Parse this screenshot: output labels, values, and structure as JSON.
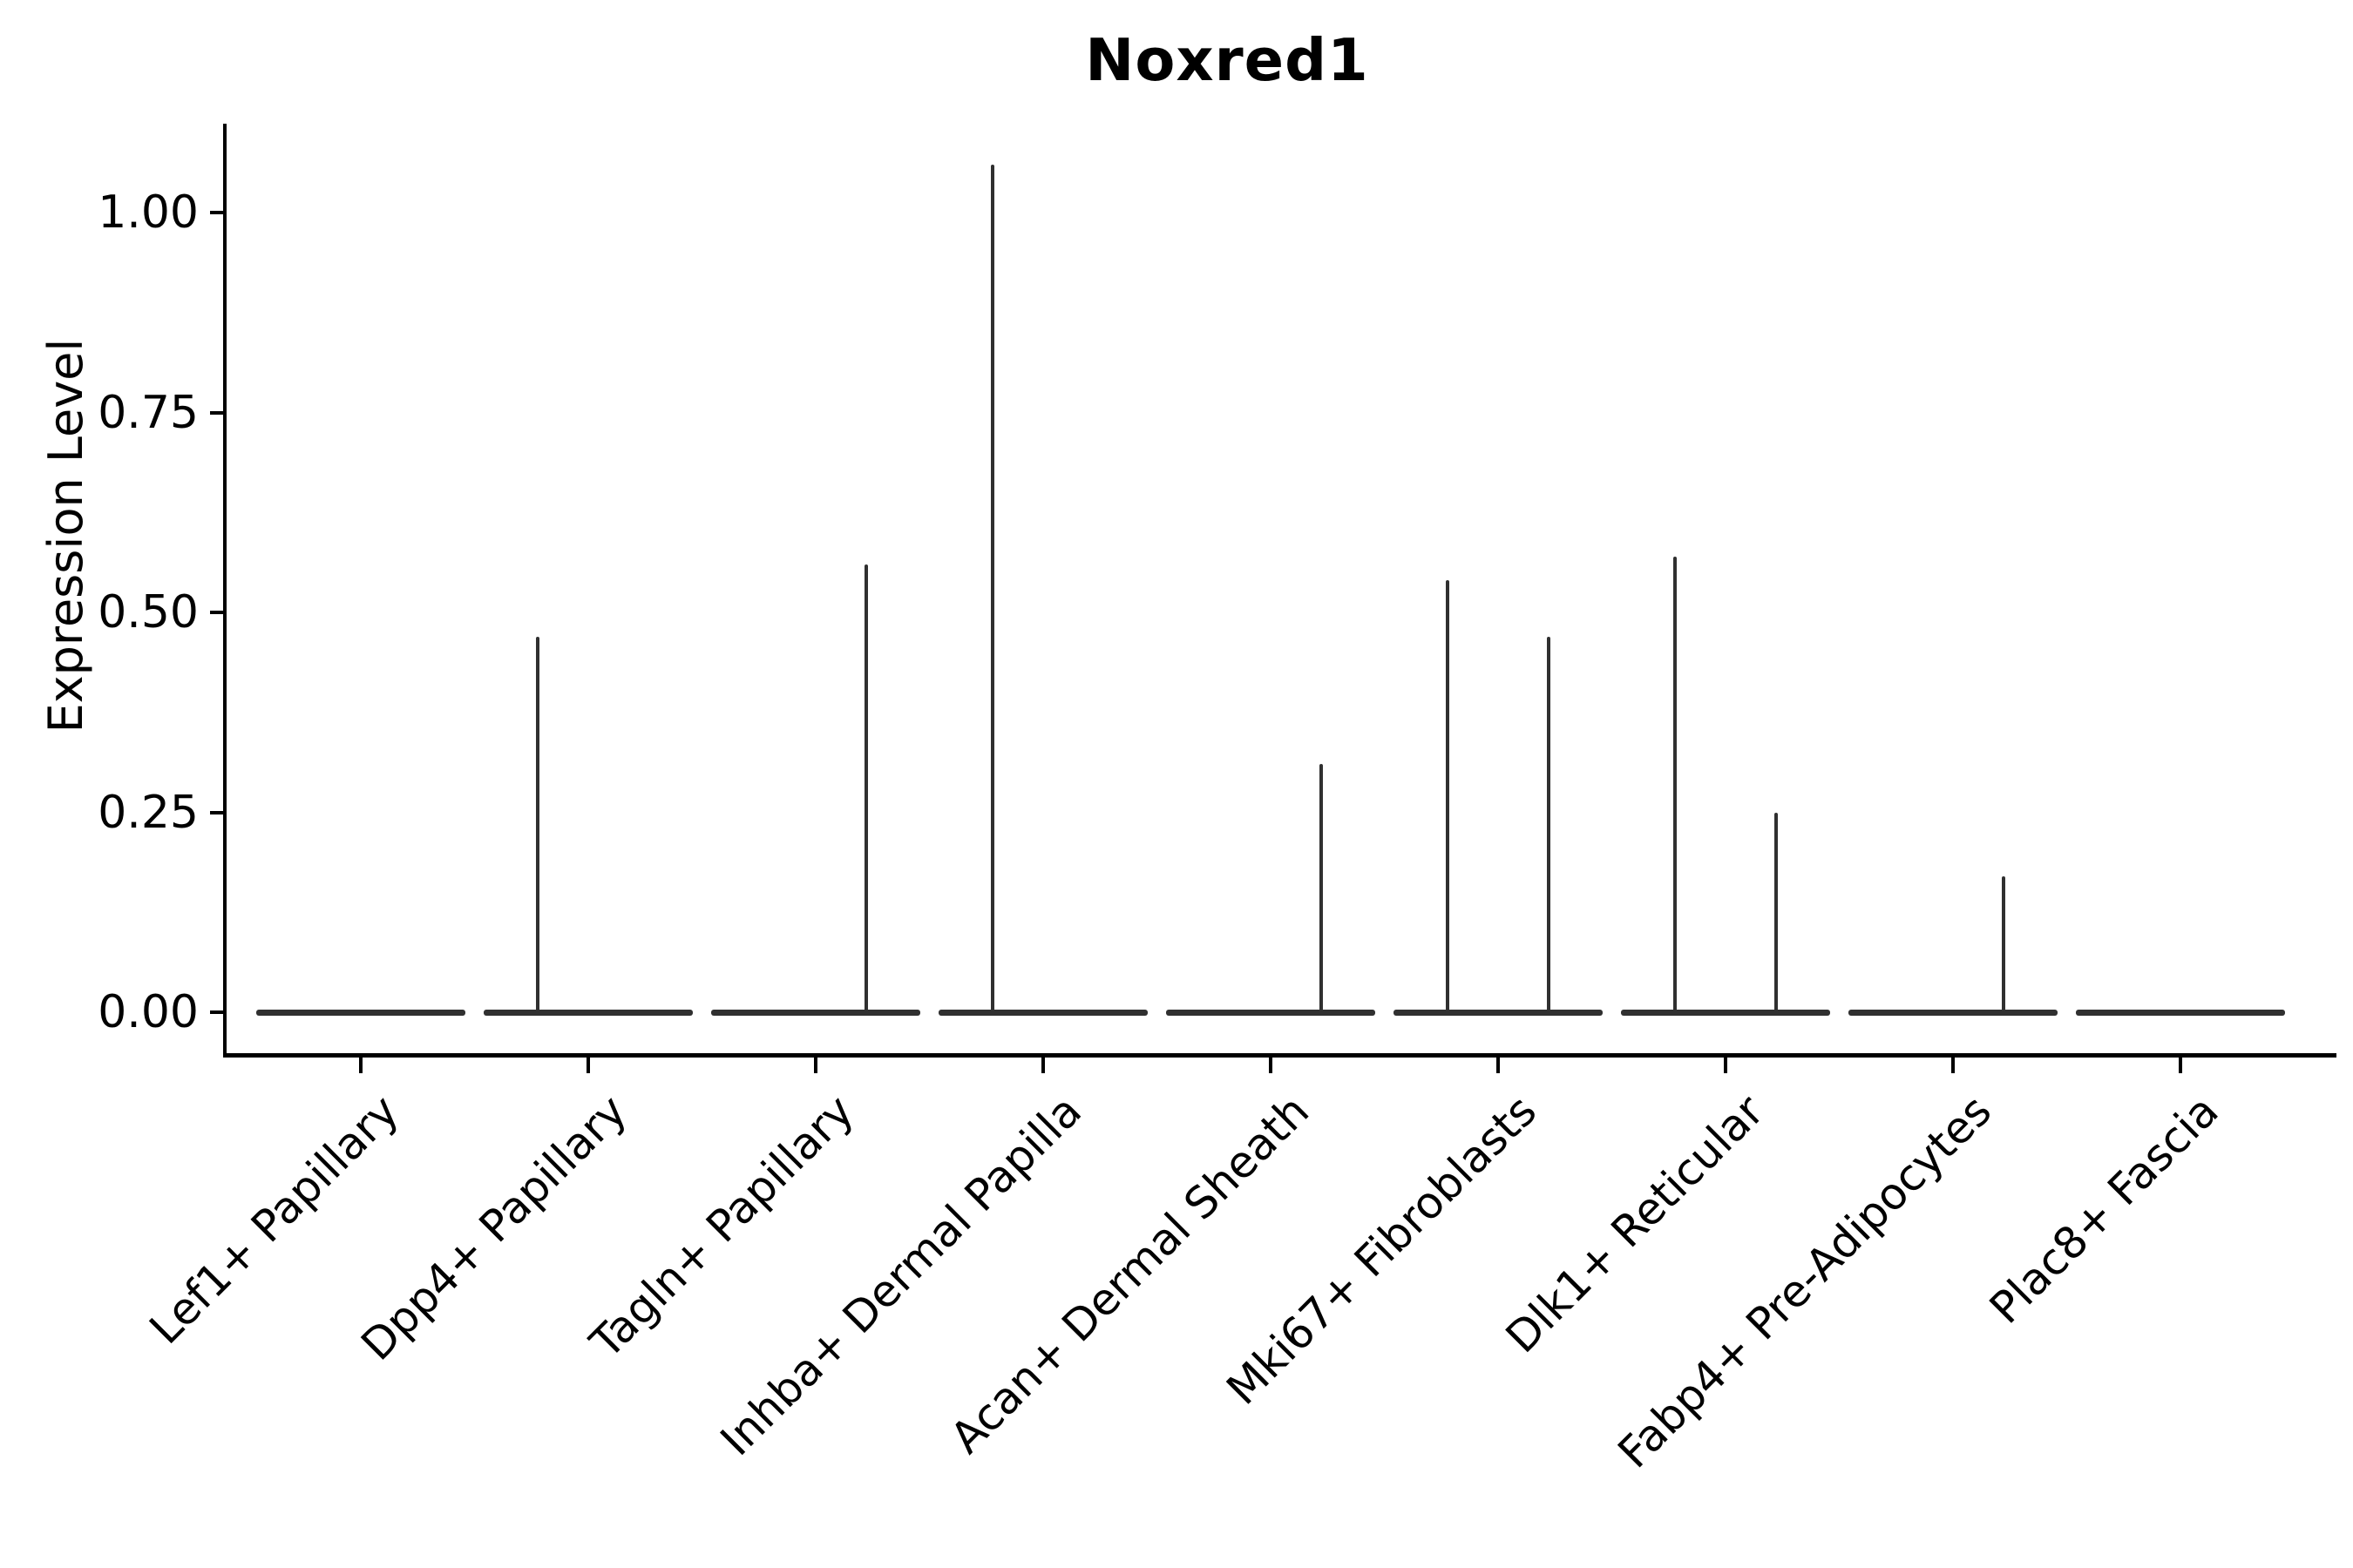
{
  "title": "Noxred1",
  "y_axis": {
    "label": "Expression Level",
    "ticks": [
      "0.00",
      "0.25",
      "0.50",
      "0.75",
      "1.00"
    ]
  },
  "x_axis": {
    "categories": [
      "Lef1+ Papillary",
      "Dpp4+ Papillary",
      "Tagln+ Papillary",
      "Inhba+ Dermal Papilla",
      "Acan+ Dermal Sheath",
      "Mki67+ Fibroblasts",
      "Dlk1+ Reticular",
      "Fabp4+ Pre-Adipocytes",
      "Plac8+ Fascia"
    ]
  },
  "colors": {
    "violin": "#303030",
    "axis": "#000000",
    "background": "#ffffff",
    "text": "#000000"
  },
  "chart_data": {
    "type": "violin",
    "title": "Noxred1",
    "xlabel": "",
    "ylabel": "Expression Level",
    "ylim": [
      -0.05,
      1.11
    ],
    "yticks": [
      0.0,
      0.25,
      0.5,
      0.75,
      1.0
    ],
    "ytick_labels": [
      "0.00",
      "0.25",
      "0.50",
      "0.75",
      "1.00"
    ],
    "grid": false,
    "legend": false,
    "violins_per_category": 2,
    "description": "All violins are fully collapsed to a flat line at expression 0, with a thin vertical spike rising to the maximum expression value where nonzero. Each category contains two adjacent sub-violins (left/right).",
    "categories": [
      "Lef1+ Papillary",
      "Dpp4+ Papillary",
      "Tagln+ Papillary",
      "Inhba+ Dermal Papilla",
      "Acan+ Dermal Sheath",
      "Mki67+ Fibroblasts",
      "Dlk1+ Reticular",
      "Fabp4+ Pre-Adipocytes",
      "Plac8+ Fascia"
    ],
    "series": [
      {
        "category": "Lef1+ Papillary",
        "violins": [
          {
            "position": "left",
            "max_expression": 0.0
          },
          {
            "position": "right",
            "max_expression": 0.0
          }
        ]
      },
      {
        "category": "Dpp4+ Papillary",
        "violins": [
          {
            "position": "left",
            "max_expression": 0.47
          },
          {
            "position": "right",
            "max_expression": 0.0
          }
        ]
      },
      {
        "category": "Tagln+ Papillary",
        "violins": [
          {
            "position": "left",
            "max_expression": 0.0
          },
          {
            "position": "right",
            "max_expression": 0.56
          }
        ]
      },
      {
        "category": "Inhba+ Dermal Papilla",
        "violins": [
          {
            "position": "left",
            "max_expression": 1.06
          },
          {
            "position": "right",
            "max_expression": 0.0
          }
        ]
      },
      {
        "category": "Acan+ Dermal Sheath",
        "violins": [
          {
            "position": "left",
            "max_expression": 0.0
          },
          {
            "position": "right",
            "max_expression": 0.31
          }
        ]
      },
      {
        "category": "Mki67+ Fibroblasts",
        "violins": [
          {
            "position": "left",
            "max_expression": 0.54
          },
          {
            "position": "right",
            "max_expression": 0.47
          }
        ]
      },
      {
        "category": "Dlk1+ Reticular",
        "violins": [
          {
            "position": "left",
            "max_expression": 0.57
          },
          {
            "position": "right",
            "max_expression": 0.25
          }
        ]
      },
      {
        "category": "Fabp4+ Pre-Adipocytes",
        "violins": [
          {
            "position": "left",
            "max_expression": 0.0
          },
          {
            "position": "right",
            "max_expression": 0.17
          }
        ]
      },
      {
        "category": "Plac8+ Fascia",
        "violins": [
          {
            "position": "left",
            "max_expression": 0.0
          },
          {
            "position": "right",
            "max_expression": 0.0
          }
        ]
      }
    ]
  }
}
